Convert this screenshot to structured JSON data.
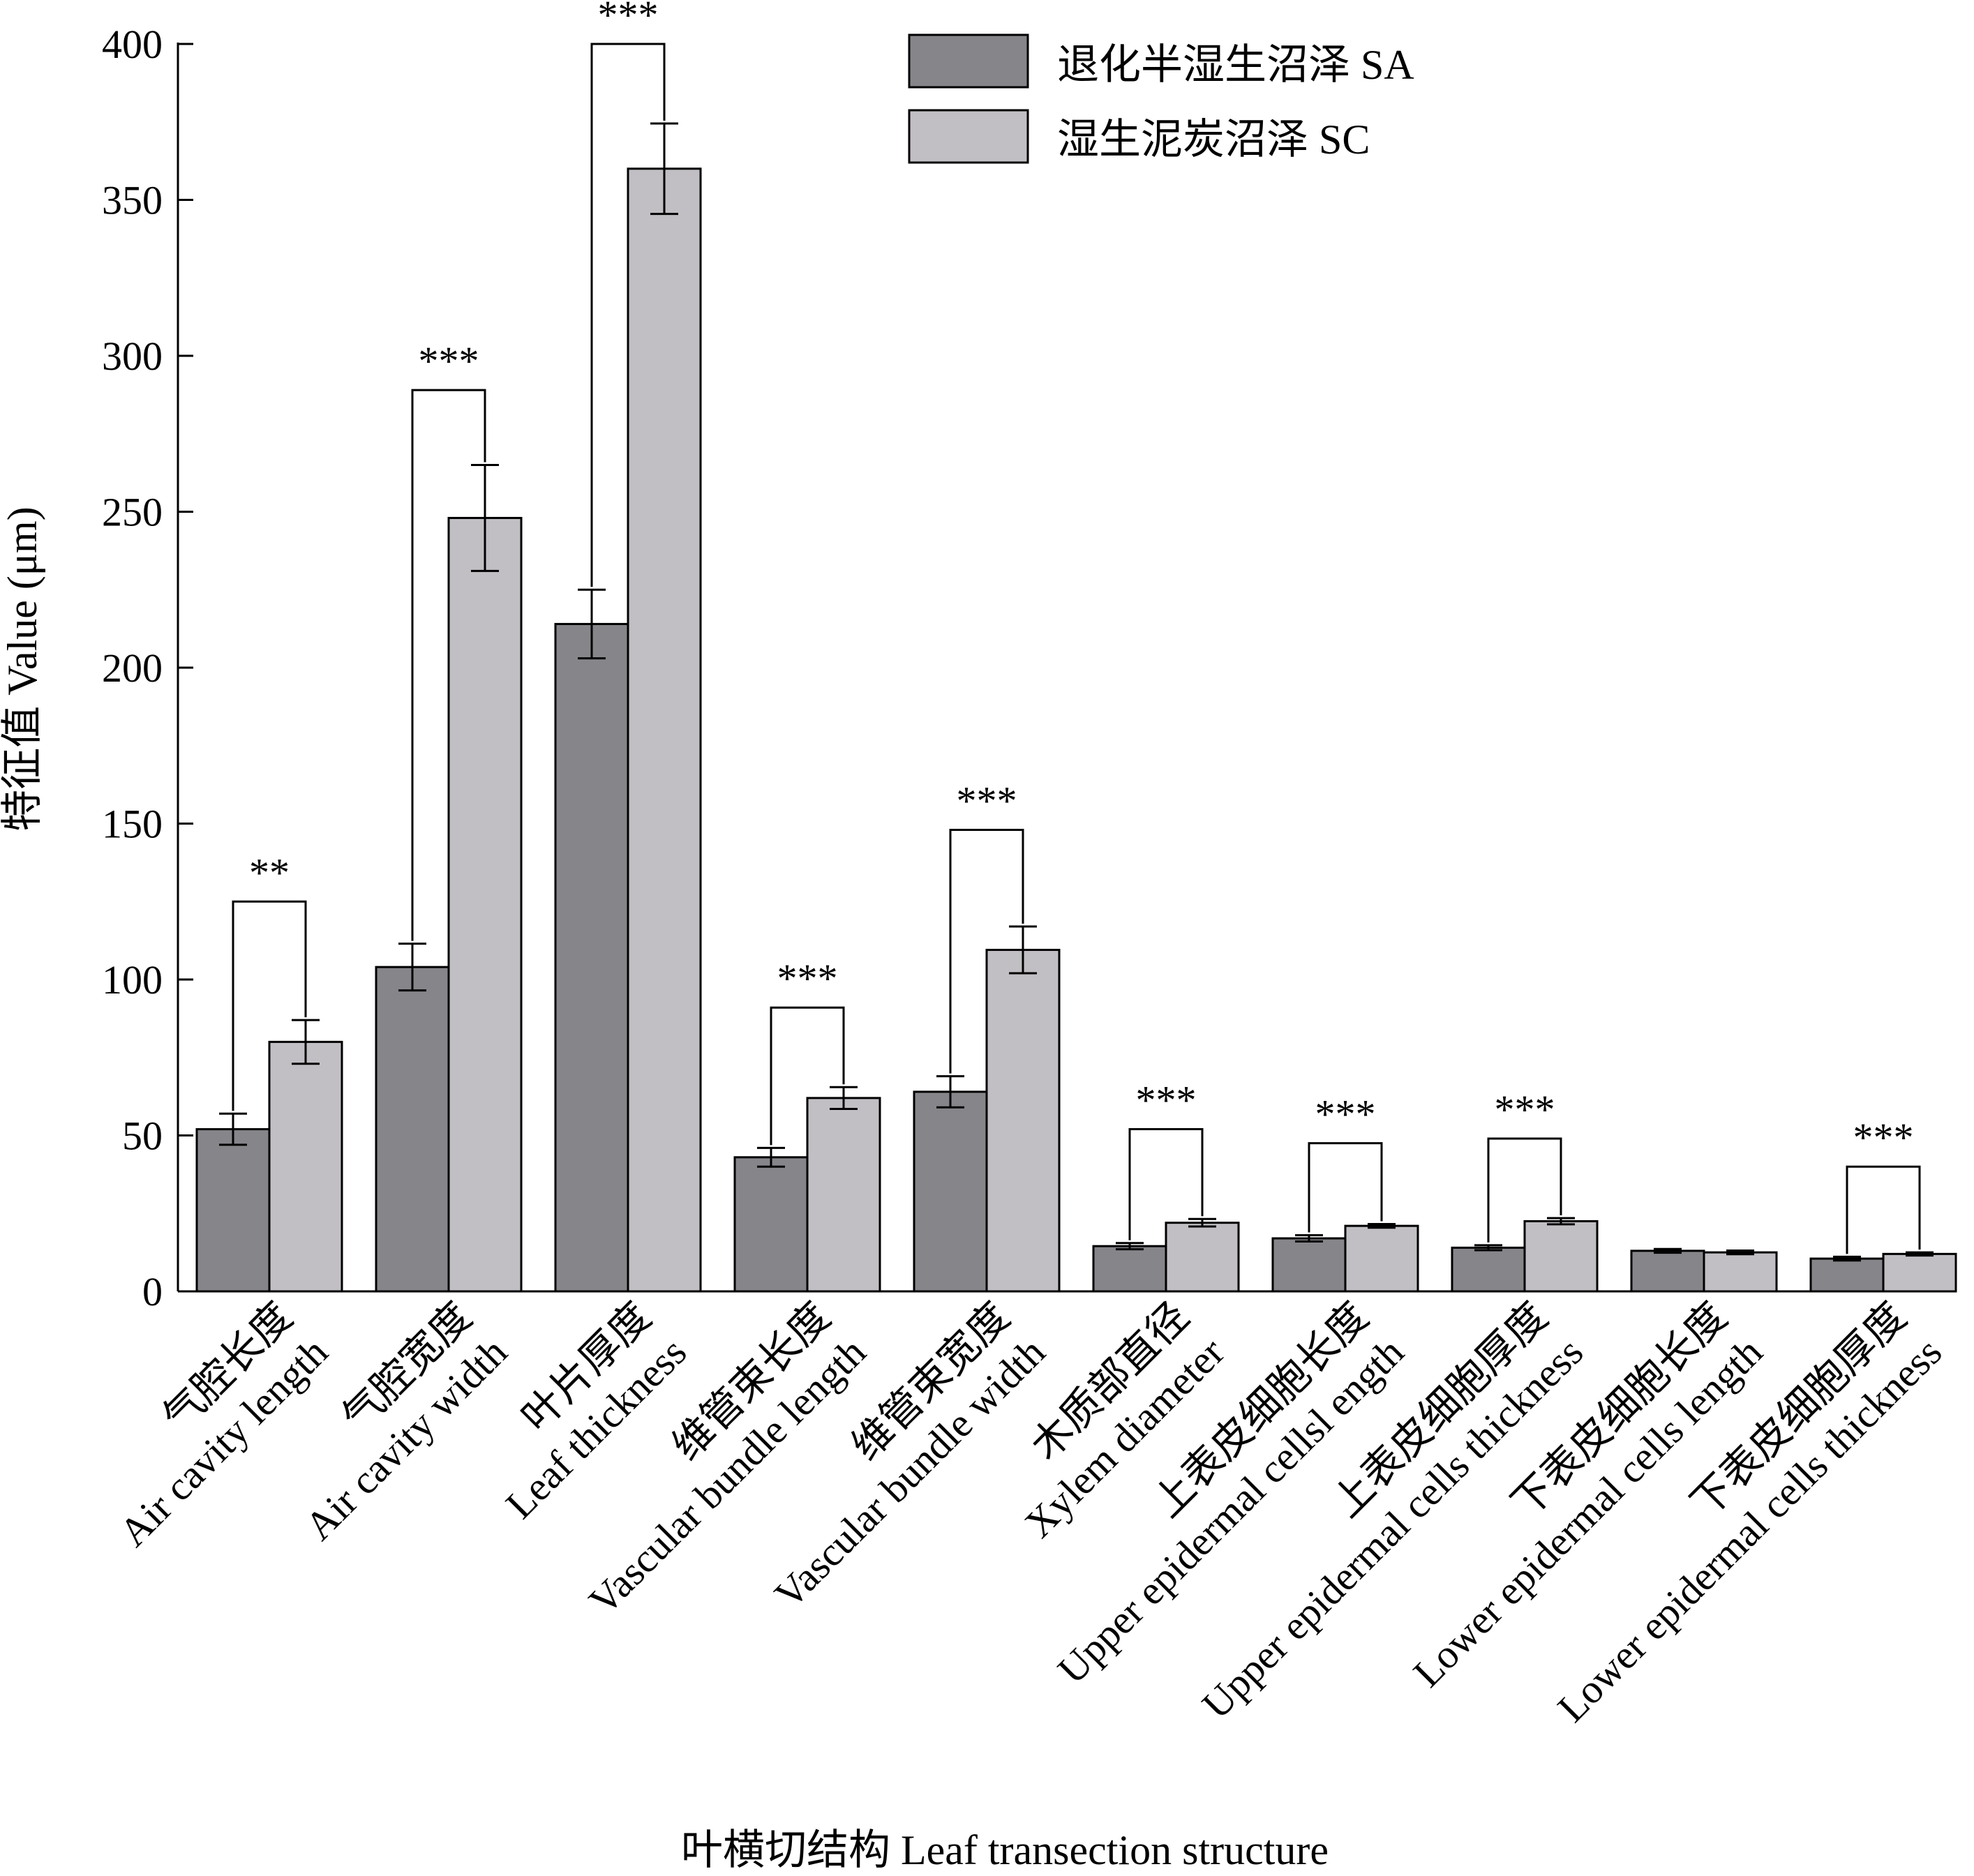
{
  "chart_data": {
    "type": "bar",
    "xlabel": "叶横切结构 Leaf transection structure",
    "ylabel": "特征值 Value (μm)",
    "ylim": [
      0,
      400
    ],
    "yticks": [
      0,
      50,
      100,
      150,
      200,
      250,
      300,
      350,
      400
    ],
    "grid": false,
    "legend_position": "top-right",
    "categories": [
      {
        "zh": "气腔长度",
        "en": "Air cavity length"
      },
      {
        "zh": "气腔宽度",
        "en": "Air cavity width"
      },
      {
        "zh": "叶片厚度",
        "en": "Leaf thickness"
      },
      {
        "zh": "维管束长度",
        "en": "Vascular bundle length"
      },
      {
        "zh": "维管束宽度",
        "en": "Vascular bundle width"
      },
      {
        "zh": "木质部直径",
        "en": "Xylem diameter"
      },
      {
        "zh": "上表皮细胞长度",
        "en": "Upper epidermal cellsl ength"
      },
      {
        "zh": "上表皮细胞厚度",
        "en": "Upper epidermal cells thickness"
      },
      {
        "zh": "下表皮细胞长度",
        "en": "Lower epidermal cells length"
      },
      {
        "zh": "下表皮细胞厚度",
        "en": "Lower epidermal cells thickness"
      }
    ],
    "series": [
      {
        "name": "退化半湿生沼泽 SA",
        "color": "#86858a",
        "values": [
          52,
          104,
          214,
          43,
          64,
          14.5,
          17,
          14,
          13,
          10.5
        ],
        "errors": [
          5,
          7.5,
          11,
          3,
          5,
          1,
          1,
          0.8,
          0.6,
          0.6
        ]
      },
      {
        "name": "湿生泥炭沼泽 SC",
        "color": "#c2bfc4",
        "values": [
          80,
          248,
          360,
          62,
          109.5,
          22,
          21,
          22.5,
          12.5,
          12
        ],
        "errors": [
          7,
          17,
          14.5,
          3.5,
          7.5,
          1.2,
          0.6,
          1,
          0.6,
          0.5
        ]
      }
    ],
    "significance": [
      "**",
      "***",
      "***",
      "***",
      "***",
      "***",
      "***",
      "***",
      "",
      "***"
    ],
    "bracket_tops": [
      125,
      289,
      400,
      91,
      148,
      52,
      47.5,
      49,
      null,
      40
    ]
  }
}
